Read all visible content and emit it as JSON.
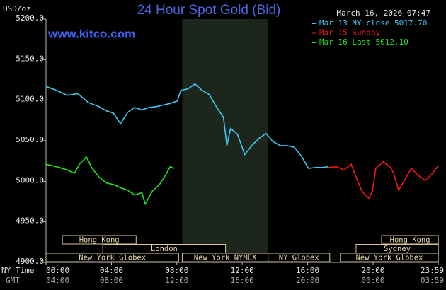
{
  "chart_data": {
    "type": "line",
    "title": "24 Hour Spot Gold (Bid)",
    "y_unit": "USD/oz",
    "source": "www.kitco.com",
    "timestamp": "March 16, 2026 07:47",
    "x_label_ny": "NY Time",
    "x_label_gmt": "GMT",
    "xlim": [
      0,
      23.983
    ],
    "ylim": [
      4900,
      5200
    ],
    "xticks": [
      {
        "value": 0,
        "label": "00:00"
      },
      {
        "value": 4,
        "label": "04:00"
      },
      {
        "value": 8,
        "label": "08:00"
      },
      {
        "value": 12,
        "label": "12:00"
      },
      {
        "value": 16,
        "label": "16:00"
      },
      {
        "value": 20,
        "label": "20:00"
      },
      {
        "value": 23.983,
        "label": "23:59"
      }
    ],
    "gmt_tick_labels": [
      "04:00",
      "08:00",
      "12:00",
      "16:00",
      "20:00",
      "00:00",
      "03:59"
    ],
    "yticks": [
      {
        "value": 4900,
        "label": "4900.0"
      },
      {
        "value": 4950,
        "label": "4950.0"
      },
      {
        "value": 5000,
        "label": "5000.0"
      },
      {
        "value": 5050,
        "label": "5050.0"
      },
      {
        "value": 5100,
        "label": "5100.0"
      },
      {
        "value": 5150,
        "label": "5150.0"
      },
      {
        "value": 5200,
        "label": "5200.0"
      }
    ],
    "shaded_range": [
      8.33,
      13.58
    ],
    "series": [
      {
        "name": "Mar 13 NY close 5017.70",
        "color": "#3fc8f0",
        "x": [
          0,
          0.65,
          1.3,
          1.95,
          2.6,
          3.25,
          3.69,
          4.12,
          4.56,
          4.99,
          5.42,
          5.86,
          6.29,
          6.72,
          7.16,
          7.59,
          8.03,
          8.24,
          8.68,
          9.11,
          9.54,
          9.98,
          10.41,
          10.85,
          11.06,
          11.28,
          11.71,
          12.15,
          12.58,
          13.02,
          13.45,
          13.88,
          14.32,
          14.75,
          15.18,
          15.62,
          16.05,
          16.49,
          16.92,
          17.27
        ],
        "values": [
          5117,
          5112,
          5106,
          5108,
          5097,
          5092,
          5087,
          5084,
          5071,
          5085,
          5091,
          5088,
          5091,
          5092,
          5094,
          5096,
          5099,
          5112,
          5114,
          5120,
          5112,
          5107,
          5092,
          5079,
          5044,
          5065,
          5058,
          5033,
          5044,
          5053,
          5059,
          5049,
          5044,
          5044,
          5042,
          5031,
          5016,
          5017,
          5017,
          5018
        ]
      },
      {
        "name": "Mar 15 Sunday",
        "color": "#f01818",
        "x": [
          17.27,
          17.79,
          18.22,
          18.66,
          18.87,
          19.31,
          19.74,
          19.96,
          20.17,
          20.61,
          21.04,
          21.26,
          21.56,
          21.91,
          22.34,
          22.78,
          23.21,
          23.64,
          23.98
        ],
        "values": [
          5017,
          5018,
          5014,
          5021,
          5010,
          4988,
          4979,
          4988,
          5016,
          5024,
          5018,
          5010,
          4989,
          5001,
          5016,
          5007,
          5001,
          5010,
          5019
        ]
      },
      {
        "name": "Mar 16 Last 5012.10",
        "color": "#22e022",
        "x": [
          0,
          0.65,
          1.3,
          1.74,
          2.04,
          2.47,
          2.82,
          3.25,
          3.69,
          4.12,
          4.56,
          4.99,
          5.42,
          5.86,
          6.07,
          6.51,
          6.94,
          7.38,
          7.59,
          7.85
        ],
        "values": [
          5021,
          5018,
          5014,
          5010,
          5021,
          5030,
          5016,
          5005,
          4998,
          4996,
          4992,
          4989,
          4983,
          4986,
          4972,
          4988,
          4996,
          5010,
          5018,
          5016
        ]
      }
    ],
    "sessions": [
      {
        "label": "Hong Kong",
        "start": 1.0,
        "end": 5.51,
        "lane": 0
      },
      {
        "label": "Hong Kong",
        "start": 20.52,
        "end": 23.99,
        "lane": 0
      },
      {
        "label": "London",
        "start": 3.47,
        "end": 10.98,
        "lane": 1
      },
      {
        "label": "Sydney",
        "start": 18.96,
        "end": 23.99,
        "lane": 1
      },
      {
        "label": "New York Globex",
        "start": 0,
        "end": 8.11,
        "lane": 2
      },
      {
        "label": "New York NYMEX",
        "start": 8.33,
        "end": 13.58,
        "lane": 2
      },
      {
        "label": "NY Globex",
        "start": 13.58,
        "end": 17.35,
        "lane": 2
      },
      {
        "label": "New York Globex",
        "start": 18.0,
        "end": 23.99,
        "lane": 2
      }
    ]
  }
}
